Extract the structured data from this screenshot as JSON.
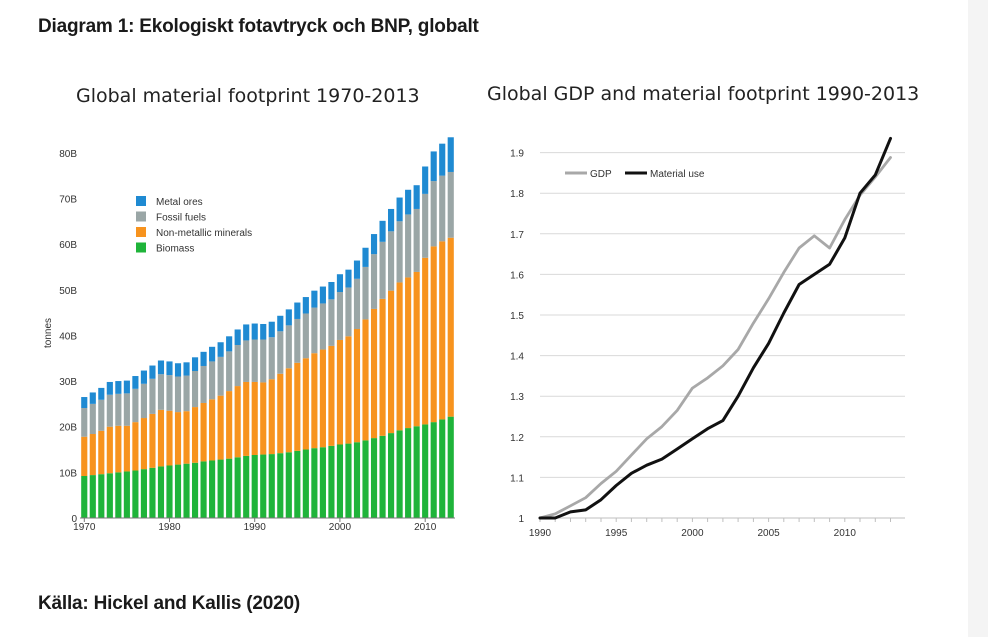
{
  "heading": "Diagram 1: Ekologiskt fotavtryck och BNP, globalt",
  "source": "Källa: Hickel and Kallis (2020)",
  "colors": {
    "metal": "#1f8ad2",
    "fossil": "#9aa6a6",
    "nonmetallic": "#f7931e",
    "biomass": "#1fb43a",
    "gdp": "#a8a8a8",
    "material": "#111111"
  },
  "chart_data": [
    {
      "type": "bar",
      "stacked": true,
      "title": "Global material footprint 1970-2013",
      "xlabel": "",
      "ylabel": "tonnes",
      "ylim": [
        0,
        85
      ],
      "yticks": [
        0,
        10,
        20,
        30,
        40,
        50,
        60,
        70,
        80
      ],
      "ytick_labels": [
        "0",
        "10B",
        "20B",
        "30B",
        "40B",
        "50B",
        "60B",
        "70B",
        "80B"
      ],
      "xtick_labels": [
        "1970",
        "1980",
        "1990",
        "2000",
        "2010"
      ],
      "legend_position": "top-left",
      "categories": [
        1970,
        1971,
        1972,
        1973,
        1974,
        1975,
        1976,
        1977,
        1978,
        1979,
        1980,
        1981,
        1982,
        1983,
        1984,
        1985,
        1986,
        1987,
        1988,
        1989,
        1990,
        1991,
        1992,
        1993,
        1994,
        1995,
        1996,
        1997,
        1998,
        1999,
        2000,
        2001,
        2002,
        2003,
        2004,
        2005,
        2006,
        2007,
        2008,
        2009,
        2010,
        2011,
        2012,
        2013
      ],
      "series": [
        {
          "name": "Biomass",
          "color_key": "biomass",
          "values": [
            9.2,
            9.4,
            9.6,
            9.8,
            10.0,
            10.2,
            10.4,
            10.7,
            11.0,
            11.3,
            11.5,
            11.7,
            11.9,
            12.1,
            12.4,
            12.6,
            12.8,
            13.0,
            13.3,
            13.6,
            13.8,
            13.9,
            14.0,
            14.2,
            14.4,
            14.7,
            15.0,
            15.3,
            15.5,
            15.8,
            16.1,
            16.3,
            16.6,
            17.0,
            17.5,
            18.0,
            18.6,
            19.2,
            19.7,
            20.1,
            20.5,
            21.0,
            21.6,
            22.2
          ]
        },
        {
          "name": "Non-metallic minerals",
          "color_key": "nonmetallic",
          "values": [
            8.6,
            9.0,
            9.5,
            10.2,
            10.2,
            10.0,
            10.6,
            11.2,
            11.8,
            12.4,
            12.0,
            11.5,
            11.5,
            12.2,
            12.8,
            13.4,
            14.0,
            14.8,
            15.6,
            16.2,
            16.0,
            15.8,
            16.4,
            17.4,
            18.4,
            19.3,
            20.0,
            20.8,
            21.4,
            21.9,
            22.9,
            23.5,
            24.8,
            26.5,
            28.3,
            30.0,
            31.2,
            32.4,
            33.0,
            33.8,
            36.5,
            38.5,
            39.0,
            39.2
          ]
        },
        {
          "name": "Fossil fuels",
          "color_key": "fossil",
          "values": [
            6.3,
            6.6,
            6.8,
            7.0,
            7.0,
            7.1,
            7.3,
            7.5,
            7.7,
            7.8,
            7.8,
            7.8,
            7.8,
            7.9,
            8.1,
            8.3,
            8.5,
            8.7,
            9.0,
            9.1,
            9.3,
            9.4,
            9.2,
            9.3,
            9.4,
            9.6,
            9.8,
            10.0,
            10.1,
            10.2,
            10.5,
            10.7,
            11.0,
            11.5,
            12.0,
            12.5,
            13.0,
            13.4,
            13.8,
            13.8,
            14.0,
            14.3,
            14.4,
            14.4
          ]
        },
        {
          "name": "Metal ores",
          "color_key": "metal",
          "values": [
            2.4,
            2.5,
            2.6,
            2.8,
            2.8,
            2.8,
            2.8,
            2.9,
            2.9,
            3.0,
            3.0,
            2.9,
            2.9,
            3.0,
            3.1,
            3.2,
            3.2,
            3.3,
            3.4,
            3.5,
            3.5,
            3.4,
            3.4,
            3.4,
            3.5,
            3.6,
            3.6,
            3.7,
            3.7,
            3.8,
            3.9,
            3.9,
            4.0,
            4.2,
            4.4,
            4.6,
            4.9,
            5.2,
            5.4,
            5.2,
            6.0,
            6.5,
            7.0,
            7.6
          ]
        }
      ]
    },
    {
      "type": "line",
      "title": "Global GDP and material footprint 1990-2013",
      "xlabel": "",
      "ylabel": "",
      "xlim": [
        1990,
        2014
      ],
      "ylim": [
        1,
        1.95
      ],
      "xtick_labels": [
        "1990",
        "1995",
        "2000",
        "2005",
        "2010"
      ],
      "ytick_labels": [
        "1",
        "1.1",
        "1.2",
        "1.3",
        "1.4",
        "1.5",
        "1.6",
        "1.7",
        "1.8",
        "1.9"
      ],
      "legend_position": "top-left",
      "x": [
        1990,
        1991,
        1992,
        1993,
        1994,
        1995,
        1996,
        1997,
        1998,
        1999,
        2000,
        2001,
        2002,
        2003,
        2004,
        2005,
        2006,
        2007,
        2008,
        2009,
        2010,
        2011,
        2012,
        2013
      ],
      "series": [
        {
          "name": "GDP",
          "color_key": "gdp",
          "values": [
            1.0,
            1.01,
            1.03,
            1.05,
            1.085,
            1.115,
            1.155,
            1.195,
            1.225,
            1.265,
            1.32,
            1.345,
            1.375,
            1.415,
            1.48,
            1.54,
            1.605,
            1.665,
            1.695,
            1.665,
            1.735,
            1.795,
            1.84,
            1.888
          ]
        },
        {
          "name": "Material use",
          "color_key": "material",
          "values": [
            1.0,
            1.0,
            1.015,
            1.02,
            1.045,
            1.08,
            1.11,
            1.13,
            1.145,
            1.17,
            1.195,
            1.22,
            1.24,
            1.3,
            1.37,
            1.43,
            1.505,
            1.575,
            1.6,
            1.625,
            1.69,
            1.8,
            1.845,
            1.935
          ]
        }
      ]
    }
  ]
}
